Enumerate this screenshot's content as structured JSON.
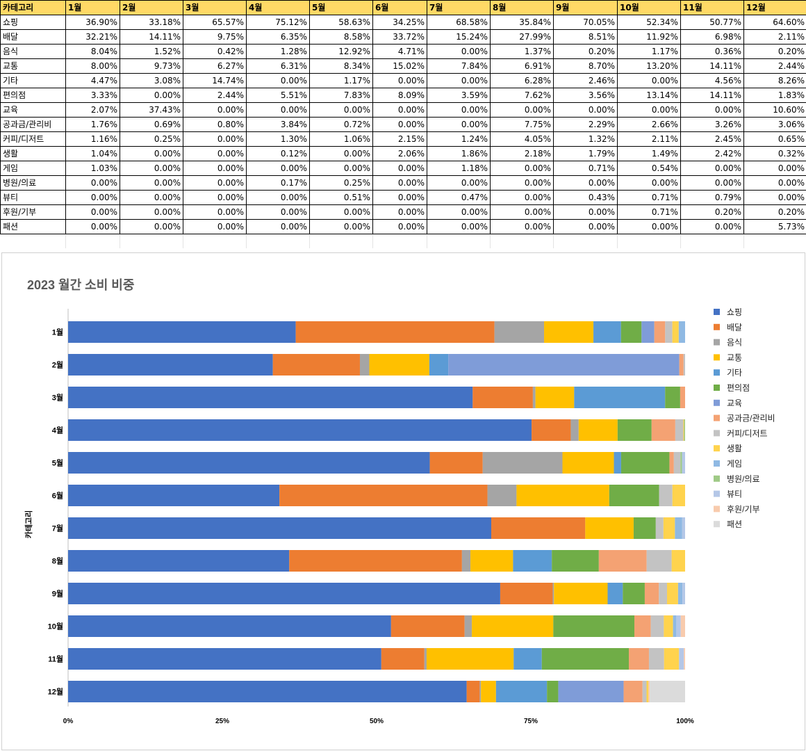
{
  "table": {
    "header": [
      "카테고리",
      "1월",
      "2월",
      "3월",
      "4월",
      "5월",
      "6월",
      "7월",
      "8월",
      "9월",
      "10월",
      "11월",
      "12월"
    ],
    "rows": [
      {
        "category": "쇼핑",
        "values": [
          "36.90%",
          "33.18%",
          "65.57%",
          "75.12%",
          "58.63%",
          "34.25%",
          "68.58%",
          "35.84%",
          "70.05%",
          "52.34%",
          "50.77%",
          "64.60%"
        ]
      },
      {
        "category": "배달",
        "values": [
          "32.21%",
          "14.11%",
          "9.75%",
          "6.35%",
          "8.58%",
          "33.72%",
          "15.24%",
          "27.99%",
          "8.51%",
          "11.92%",
          "6.98%",
          "2.11%"
        ]
      },
      {
        "category": "음식",
        "values": [
          "8.04%",
          "1.52%",
          "0.42%",
          "1.28%",
          "12.92%",
          "4.71%",
          "0.00%",
          "1.37%",
          "0.20%",
          "1.17%",
          "0.36%",
          "0.20%"
        ]
      },
      {
        "category": "교통",
        "values": [
          "8.00%",
          "9.73%",
          "6.27%",
          "6.31%",
          "8.34%",
          "15.02%",
          "7.84%",
          "6.91%",
          "8.70%",
          "13.20%",
          "14.11%",
          "2.44%"
        ]
      },
      {
        "category": "기타",
        "values": [
          "4.47%",
          "3.08%",
          "14.74%",
          "0.00%",
          "1.17%",
          "0.00%",
          "0.00%",
          "6.28%",
          "2.46%",
          "0.00%",
          "4.56%",
          "8.26%"
        ]
      },
      {
        "category": "편의점",
        "values": [
          "3.33%",
          "0.00%",
          "2.44%",
          "5.51%",
          "7.83%",
          "8.09%",
          "3.59%",
          "7.62%",
          "3.56%",
          "13.14%",
          "14.11%",
          "1.83%"
        ]
      },
      {
        "category": "교육",
        "values": [
          "2.07%",
          "37.43%",
          "0.00%",
          "0.00%",
          "0.00%",
          "0.00%",
          "0.00%",
          "0.00%",
          "0.00%",
          "0.00%",
          "0.00%",
          "10.60%"
        ]
      },
      {
        "category": "공과금/관리비",
        "values": [
          "1.76%",
          "0.69%",
          "0.80%",
          "3.84%",
          "0.72%",
          "0.00%",
          "0.00%",
          "7.75%",
          "2.29%",
          "2.66%",
          "3.26%",
          "3.06%"
        ]
      },
      {
        "category": "커피/디저트",
        "values": [
          "1.16%",
          "0.25%",
          "0.00%",
          "1.30%",
          "1.06%",
          "2.15%",
          "1.24%",
          "4.05%",
          "1.32%",
          "2.11%",
          "2.45%",
          "0.65%"
        ]
      },
      {
        "category": "생활",
        "values": [
          "1.04%",
          "0.00%",
          "0.00%",
          "0.12%",
          "0.00%",
          "2.06%",
          "1.86%",
          "2.18%",
          "1.79%",
          "1.49%",
          "2.42%",
          "0.32%"
        ]
      },
      {
        "category": "게임",
        "values": [
          "1.03%",
          "0.00%",
          "0.00%",
          "0.00%",
          "0.00%",
          "0.00%",
          "1.18%",
          "0.00%",
          "0.71%",
          "0.54%",
          "0.00%",
          "0.00%"
        ]
      },
      {
        "category": "병원/의료",
        "values": [
          "0.00%",
          "0.00%",
          "0.00%",
          "0.17%",
          "0.25%",
          "0.00%",
          "0.00%",
          "0.00%",
          "0.00%",
          "0.00%",
          "0.00%",
          "0.00%"
        ]
      },
      {
        "category": "뷰티",
        "values": [
          "0.00%",
          "0.00%",
          "0.00%",
          "0.00%",
          "0.51%",
          "0.00%",
          "0.47%",
          "0.00%",
          "0.43%",
          "0.71%",
          "0.79%",
          "0.00%"
        ]
      },
      {
        "category": "후원/기부",
        "values": [
          "0.00%",
          "0.00%",
          "0.00%",
          "0.00%",
          "0.00%",
          "0.00%",
          "0.00%",
          "0.00%",
          "0.00%",
          "0.71%",
          "0.20%",
          "0.20%"
        ]
      },
      {
        "category": "패션",
        "values": [
          "0.00%",
          "0.00%",
          "0.00%",
          "0.00%",
          "0.00%",
          "0.00%",
          "0.00%",
          "0.00%",
          "0.00%",
          "0.00%",
          "0.00%",
          "5.73%"
        ]
      }
    ]
  },
  "chart_data": {
    "type": "bar",
    "orientation": "horizontal",
    "stacked": "percent",
    "title": "2023 월간 소비 비중",
    "xlabel": "",
    "ylabel": "카테고리",
    "categories": [
      "1월",
      "2월",
      "3월",
      "4월",
      "5월",
      "6월",
      "7월",
      "8월",
      "9월",
      "10월",
      "11월",
      "12월"
    ],
    "xlim": [
      0,
      100
    ],
    "x_ticks": [
      "0%",
      "25%",
      "50%",
      "75%",
      "100%"
    ],
    "legend_position": "right",
    "grid": false,
    "series": [
      {
        "name": "쇼핑",
        "color": "#4472c4",
        "values": [
          36.9,
          33.18,
          65.57,
          75.12,
          58.63,
          34.25,
          68.58,
          35.84,
          70.05,
          52.34,
          50.77,
          64.6
        ]
      },
      {
        "name": "배달",
        "color": "#ed7d31",
        "values": [
          32.21,
          14.11,
          9.75,
          6.35,
          8.58,
          33.72,
          15.24,
          27.99,
          8.51,
          11.92,
          6.98,
          2.11
        ]
      },
      {
        "name": "음식",
        "color": "#a5a5a5",
        "values": [
          8.04,
          1.52,
          0.42,
          1.28,
          12.92,
          4.71,
          0.0,
          1.37,
          0.2,
          1.17,
          0.36,
          0.2
        ]
      },
      {
        "name": "교통",
        "color": "#ffc000",
        "values": [
          8.0,
          9.73,
          6.27,
          6.31,
          8.34,
          15.02,
          7.84,
          6.91,
          8.7,
          13.2,
          14.11,
          2.44
        ]
      },
      {
        "name": "기타",
        "color": "#5b9bd5",
        "values": [
          4.47,
          3.08,
          14.74,
          0.0,
          1.17,
          0.0,
          0.0,
          6.28,
          2.46,
          0.0,
          4.56,
          8.26
        ]
      },
      {
        "name": "편의점",
        "color": "#70ad47",
        "values": [
          3.33,
          0.0,
          2.44,
          5.51,
          7.83,
          8.09,
          3.59,
          7.62,
          3.56,
          13.14,
          14.11,
          1.83
        ]
      },
      {
        "name": "교육",
        "color": "#7f9cd8",
        "values": [
          2.07,
          37.43,
          0.0,
          0.0,
          0.0,
          0.0,
          0.0,
          0.0,
          0.0,
          0.0,
          0.0,
          10.6
        ]
      },
      {
        "name": "공과금/관리비",
        "color": "#f4a273",
        "values": [
          1.76,
          0.69,
          0.8,
          3.84,
          0.72,
          0.0,
          0.0,
          7.75,
          2.29,
          2.66,
          3.26,
          3.06
        ]
      },
      {
        "name": "커피/디저트",
        "color": "#c3c3c3",
        "values": [
          1.16,
          0.25,
          0.0,
          1.3,
          1.06,
          2.15,
          1.24,
          4.05,
          1.32,
          2.11,
          2.45,
          0.65
        ]
      },
      {
        "name": "생활",
        "color": "#ffd34d",
        "values": [
          1.04,
          0.0,
          0.0,
          0.12,
          0.0,
          2.06,
          1.86,
          2.18,
          1.79,
          1.49,
          2.42,
          0.32
        ]
      },
      {
        "name": "게임",
        "color": "#8fb9e3",
        "values": [
          1.03,
          0.0,
          0.0,
          0.0,
          0.0,
          0.0,
          1.18,
          0.0,
          0.71,
          0.54,
          0.0,
          0.0
        ]
      },
      {
        "name": "병원/의료",
        "color": "#9fca86",
        "values": [
          0.0,
          0.0,
          0.0,
          0.17,
          0.25,
          0.0,
          0.0,
          0.0,
          0.0,
          0.0,
          0.0,
          0.0
        ]
      },
      {
        "name": "뷰티",
        "color": "#b4c7e7",
        "values": [
          0.0,
          0.0,
          0.0,
          0.0,
          0.51,
          0.0,
          0.47,
          0.0,
          0.43,
          0.71,
          0.79,
          0.0
        ]
      },
      {
        "name": "후원/기부",
        "color": "#f8cbad",
        "values": [
          0.0,
          0.0,
          0.0,
          0.0,
          0.0,
          0.0,
          0.0,
          0.0,
          0.0,
          0.71,
          0.2,
          0.2
        ]
      },
      {
        "name": "패션",
        "color": "#dbdbdb",
        "values": [
          0.0,
          0.0,
          0.0,
          0.0,
          0.0,
          0.0,
          0.0,
          0.0,
          0.0,
          0.0,
          0.0,
          5.73
        ]
      }
    ]
  }
}
